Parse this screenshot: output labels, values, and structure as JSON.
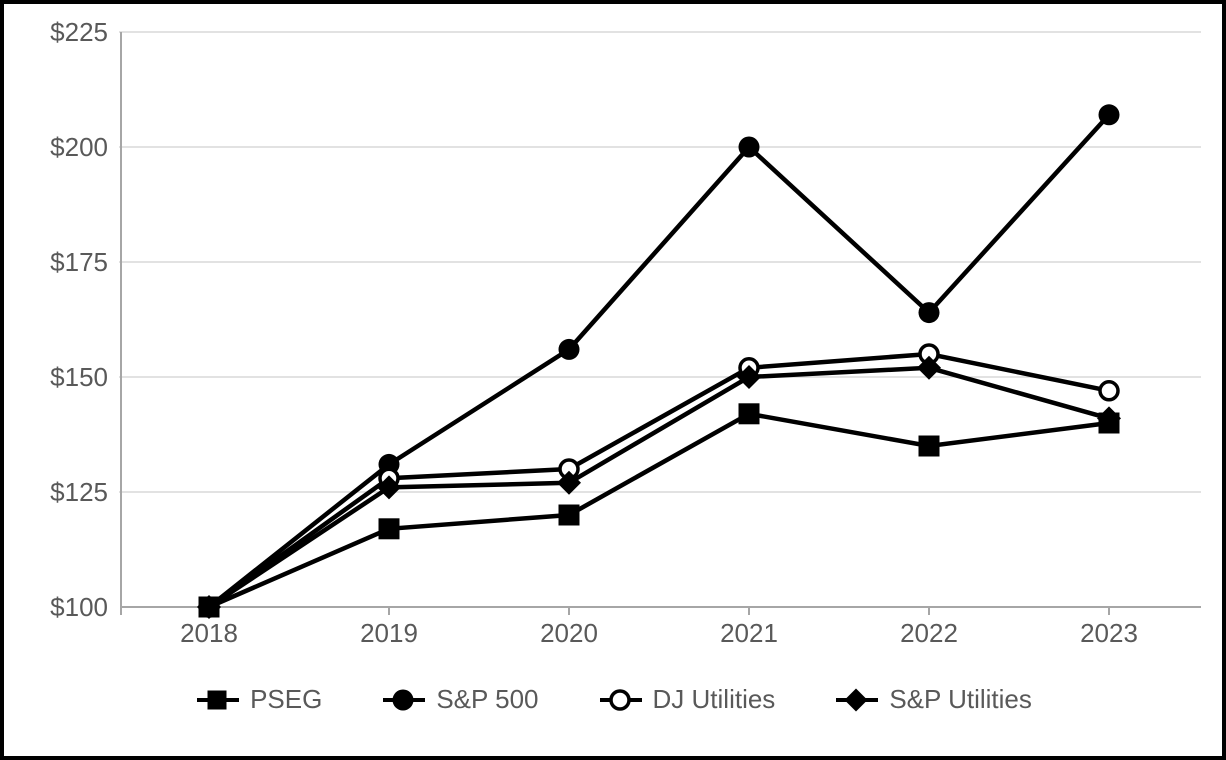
{
  "chart_data": {
    "type": "line",
    "title": "",
    "xlabel": "",
    "ylabel": "",
    "x_categories": [
      "2018",
      "2019",
      "2020",
      "2021",
      "2022",
      "2023"
    ],
    "y_ticks": [
      {
        "value": 225,
        "label": "$225"
      },
      {
        "value": 200,
        "label": "$200"
      },
      {
        "value": 175,
        "label": "$175"
      },
      {
        "value": 150,
        "label": "$150"
      },
      {
        "value": 125,
        "label": "$125"
      },
      {
        "value": 100,
        "label": "$100"
      }
    ],
    "ylim": [
      100,
      225
    ],
    "grid": true,
    "legend_position": "bottom",
    "series": [
      {
        "name": "PSEG",
        "marker": "filled-square",
        "color": "#000000",
        "values": [
          100,
          117,
          120,
          142,
          135,
          140
        ]
      },
      {
        "name": "S&P 500",
        "marker": "filled-circle",
        "color": "#000000",
        "values": [
          100,
          131,
          156,
          200,
          164,
          207
        ]
      },
      {
        "name": "DJ Utilities",
        "marker": "open-circle",
        "color": "#000000",
        "values": [
          100,
          128,
          130,
          152,
          155,
          147
        ]
      },
      {
        "name": "S&P Utilities",
        "marker": "filled-diamond",
        "color": "#000000",
        "values": [
          100,
          126,
          127,
          150,
          152,
          141
        ]
      }
    ]
  },
  "colors": {
    "background": "#ffffff",
    "outer_border": "#000000",
    "gridline": "#d9d9d9",
    "axis_line": "#a6a6a6",
    "tick_label": "#595959",
    "legend_text": "#595959",
    "series_line": "#000000",
    "open_marker_fill": "#ffffff"
  }
}
